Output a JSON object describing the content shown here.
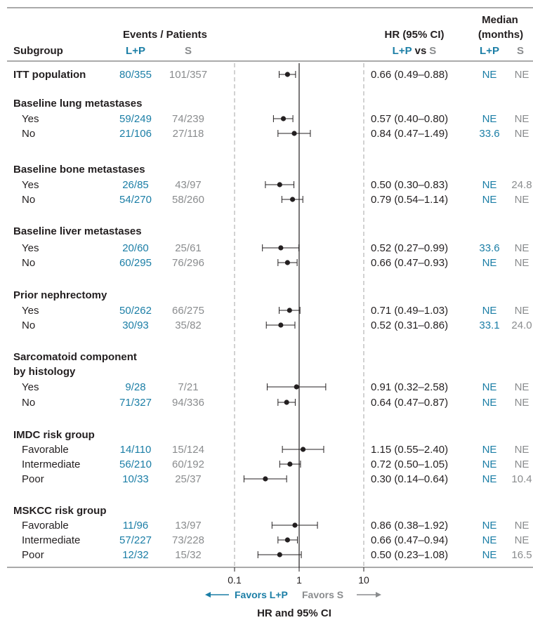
{
  "colors": {
    "lp": "#1b7ea6",
    "s": "#8a8c8e",
    "text": "#231f20",
    "rule": "#555555",
    "ref_dash": "#b3b3b3"
  },
  "header": {
    "subgroup": "Subgroup",
    "events_patients": "Events / Patients",
    "lp": "L+P",
    "s": "S",
    "hr_title": "HR (95% CI)",
    "hr_vs_a": "L+P",
    "hr_vs_mid": "vs",
    "hr_vs_b": "S",
    "median_line1": "Median",
    "median_line2": "(months)",
    "median_lp": "L+P",
    "median_s": "S"
  },
  "chart_data": {
    "type": "forest",
    "x_scale": "log",
    "xlim": [
      0.1,
      10
    ],
    "x_ticks": [
      "0.1",
      "1",
      "10"
    ],
    "reference_line": 1,
    "dashed_lines": [
      0.1,
      10
    ],
    "xlabel": "HR and 95% CI",
    "favors_left": "Favors L+P",
    "favors_right": "Favors S",
    "rows": [
      {
        "type": "heading",
        "label": "ITT population",
        "lp": "80/355",
        "s": "101/357",
        "hr": 0.66,
        "lo": 0.49,
        "hi": 0.88,
        "hr_text": "0.66 (0.49–0.88)",
        "med_lp": "NE",
        "med_s": "NE"
      },
      {
        "type": "heading",
        "label": "Baseline lung metastases"
      },
      {
        "type": "item",
        "label": "Yes",
        "lp": "59/249",
        "s": "74/239",
        "hr": 0.57,
        "lo": 0.4,
        "hi": 0.8,
        "hr_text": "0.57 (0.40–0.80)",
        "med_lp": "NE",
        "med_s": "NE"
      },
      {
        "type": "item",
        "label": "No",
        "lp": "21/106",
        "s": "27/118",
        "hr": 0.84,
        "lo": 0.47,
        "hi": 1.49,
        "hr_text": "0.84 (0.47–1.49)",
        "med_lp": "33.6",
        "med_s": "NE"
      },
      {
        "type": "heading",
        "label": "Baseline bone metastases"
      },
      {
        "type": "item",
        "label": "Yes",
        "lp": "26/85",
        "s": "43/97",
        "hr": 0.5,
        "lo": 0.3,
        "hi": 0.83,
        "hr_text": "0.50 (0.30–0.83)",
        "med_lp": "NE",
        "med_s": "24.8"
      },
      {
        "type": "item",
        "label": "No",
        "lp": "54/270",
        "s": "58/260",
        "hr": 0.79,
        "lo": 0.54,
        "hi": 1.14,
        "hr_text": "0.79 (0.54–1.14)",
        "med_lp": "NE",
        "med_s": "NE"
      },
      {
        "type": "heading",
        "label": "Baseline liver metastases"
      },
      {
        "type": "item",
        "label": "Yes",
        "lp": "20/60",
        "s": "25/61",
        "hr": 0.52,
        "lo": 0.27,
        "hi": 0.99,
        "hr_text": "0.52 (0.27–0.99)",
        "med_lp": "33.6",
        "med_s": "NE"
      },
      {
        "type": "item",
        "label": "No",
        "lp": "60/295",
        "s": "76/296",
        "hr": 0.66,
        "lo": 0.47,
        "hi": 0.93,
        "hr_text": "0.66 (0.47–0.93)",
        "med_lp": "NE",
        "med_s": "NE"
      },
      {
        "type": "heading",
        "label": "Prior nephrectomy"
      },
      {
        "type": "item",
        "label": "Yes",
        "lp": "50/262",
        "s": "66/275",
        "hr": 0.71,
        "lo": 0.49,
        "hi": 1.03,
        "hr_text": "0.71 (0.49–1.03)",
        "med_lp": "NE",
        "med_s": "NE"
      },
      {
        "type": "item",
        "label": "No",
        "lp": "30/93",
        "s": "35/82",
        "hr": 0.52,
        "lo": 0.31,
        "hi": 0.86,
        "hr_text": "0.52 (0.31–0.86)",
        "med_lp": "33.1",
        "med_s": "24.0"
      },
      {
        "type": "heading",
        "label": "Sarcomatoid component"
      },
      {
        "type": "heading",
        "label": "by histology"
      },
      {
        "type": "item",
        "label": "Yes",
        "lp": "9/28",
        "s": "7/21",
        "hr": 0.91,
        "lo": 0.32,
        "hi": 2.58,
        "hr_text": "0.91 (0.32–2.58)",
        "med_lp": "NE",
        "med_s": "NE"
      },
      {
        "type": "item",
        "label": "No",
        "lp": "71/327",
        "s": "94/336",
        "hr": 0.64,
        "lo": 0.47,
        "hi": 0.87,
        "hr_text": "0.64 (0.47–0.87)",
        "med_lp": "NE",
        "med_s": "NE"
      },
      {
        "type": "heading",
        "label": "IMDC risk group"
      },
      {
        "type": "item",
        "label": "Favorable",
        "lp": "14/110",
        "s": "15/124",
        "hr": 1.15,
        "lo": 0.55,
        "hi": 2.4,
        "hr_text": "1.15 (0.55–2.40)",
        "med_lp": "NE",
        "med_s": "NE"
      },
      {
        "type": "item",
        "label": "Intermediate",
        "lp": "56/210",
        "s": "60/192",
        "hr": 0.72,
        "lo": 0.5,
        "hi": 1.05,
        "hr_text": "0.72 (0.50–1.05)",
        "med_lp": "NE",
        "med_s": "NE"
      },
      {
        "type": "item",
        "label": "Poor",
        "lp": "10/33",
        "s": "25/37",
        "hr": 0.3,
        "lo": 0.14,
        "hi": 0.64,
        "hr_text": "0.30 (0.14–0.64)",
        "med_lp": "NE",
        "med_s": "10.4"
      },
      {
        "type": "heading",
        "label": "MSKCC risk group"
      },
      {
        "type": "item",
        "label": "Favorable",
        "lp": "11/96",
        "s": "13/97",
        "hr": 0.86,
        "lo": 0.38,
        "hi": 1.92,
        "hr_text": "0.86 (0.38–1.92)",
        "med_lp": "NE",
        "med_s": "NE"
      },
      {
        "type": "item",
        "label": "Intermediate",
        "lp": "57/227",
        "s": "73/228",
        "hr": 0.66,
        "lo": 0.47,
        "hi": 0.94,
        "hr_text": "0.66 (0.47–0.94)",
        "med_lp": "NE",
        "med_s": "NE"
      },
      {
        "type": "item",
        "label": "Poor",
        "lp": "12/32",
        "s": "15/32",
        "hr": 0.5,
        "lo": 0.23,
        "hi": 1.08,
        "hr_text": "0.50 (0.23–1.08)",
        "med_lp": "NE",
        "med_s": "16.5"
      }
    ]
  }
}
